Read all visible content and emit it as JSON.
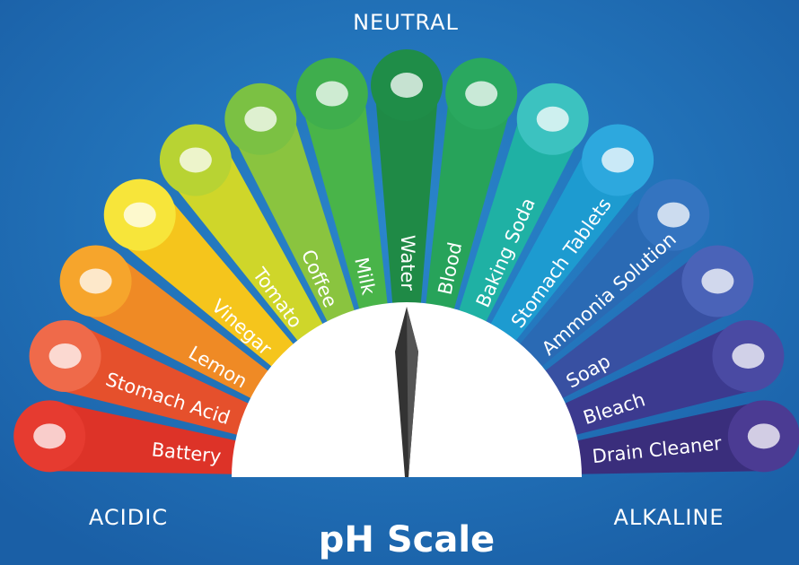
{
  "header": {
    "neutral": "NEUTRAL",
    "acidic": "ACIDIC",
    "alkaline": "ALKALINE",
    "title": "pH Scale"
  },
  "items": [
    {
      "label": "Battery"
    },
    {
      "label": "Stomach Acid"
    },
    {
      "label": "Lemon"
    },
    {
      "label": "Vinegar"
    },
    {
      "label": "Tomato"
    },
    {
      "label": "Coffee"
    },
    {
      "label": "Milk"
    },
    {
      "label": "Water"
    },
    {
      "label": "Blood"
    },
    {
      "label": "Baking Soda"
    },
    {
      "label": "Stomach Tablets"
    },
    {
      "label": "Ammonia Solution"
    },
    {
      "label": "Soap"
    },
    {
      "label": "Bleach"
    },
    {
      "label": "Drain Cleaner"
    }
  ]
}
